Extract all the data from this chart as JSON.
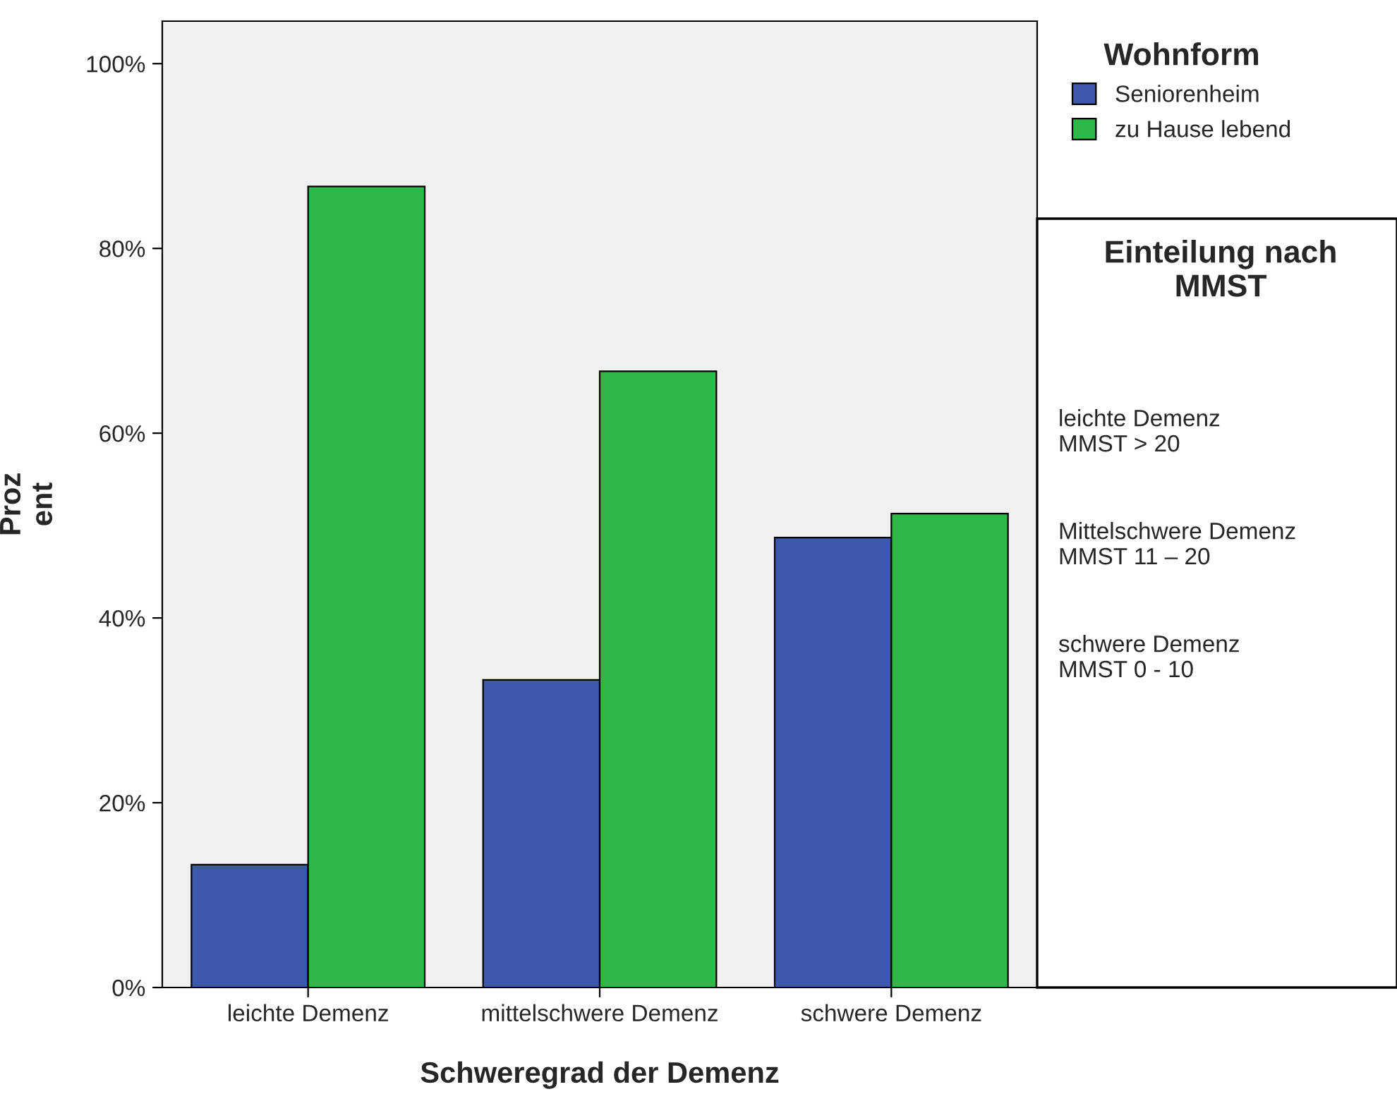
{
  "chart_data": {
    "type": "bar",
    "xlabel": "Schweregrad der Demenz",
    "ylabel": "Proz\nent",
    "legend_title": "Wohnform",
    "legend": "top right",
    "categories": [
      "leichte Demenz",
      "mittelschwere Demenz",
      "schwere Demenz"
    ],
    "series": [
      {
        "name": "Seniorenheim",
        "color": "#3e58ac",
        "values": [
          13.3,
          33.3,
          48.7
        ]
      },
      {
        "name": "zu Hause lebend",
        "color": "#2eb848",
        "values": [
          86.7,
          66.7,
          51.3
        ]
      }
    ],
    "ylim": [
      0,
      104.6
    ],
    "yticks": [
      {
        "value": 0,
        "label": "0%"
      },
      {
        "value": 20,
        "label": "20%"
      },
      {
        "value": 40,
        "label": "40%"
      },
      {
        "value": 60,
        "label": "60%"
      },
      {
        "value": 80,
        "label": "80%"
      },
      {
        "value": 100,
        "label": "100%"
      }
    ],
    "grid": false,
    "annotations": [
      "Einteilung nach\nMMST",
      "leichte Demenz\nMMST > 20",
      "Mittelschwere Demenz\nMMST 11 – 20",
      "schwere Demenz\nMMST 0 - 10"
    ]
  }
}
